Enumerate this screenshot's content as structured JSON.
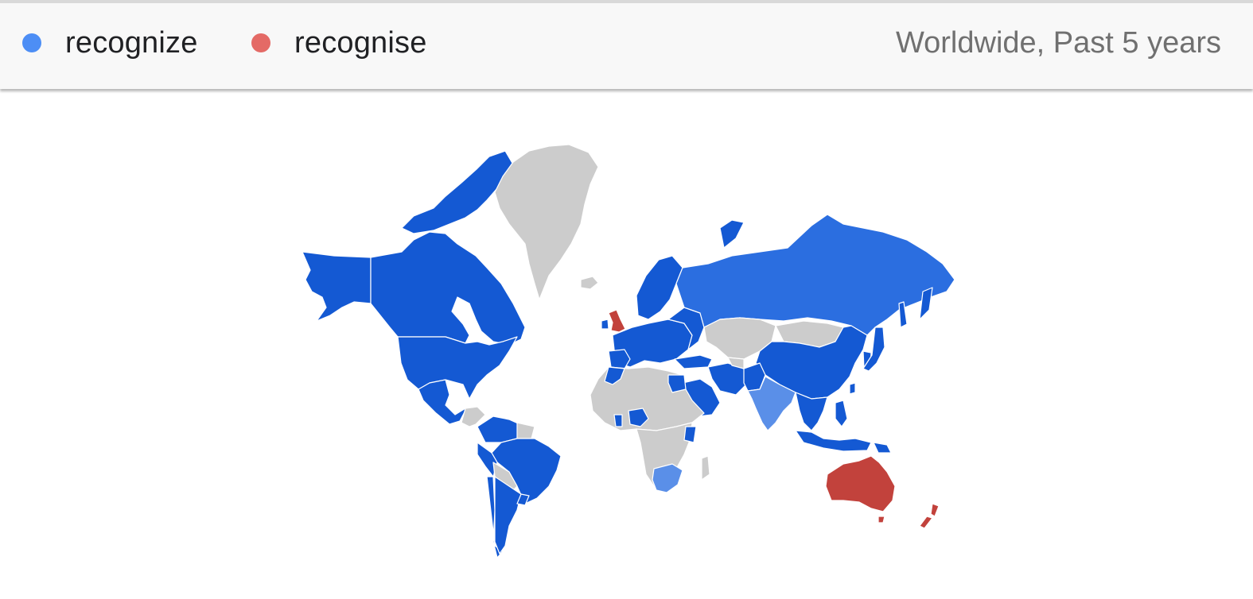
{
  "legend": {
    "items": [
      {
        "label": "recognize",
        "color": "#4d8ef5"
      },
      {
        "label": "recognise",
        "color": "#e46a66"
      }
    ]
  },
  "scope": {
    "label": "Worldwide, Past 5 years"
  },
  "map": {
    "colors": {
      "recognize_strong": "#1459d3",
      "recognize_medium": "#2b6ee0",
      "recognize_light": "#5a8fe8",
      "recognise_strong": "#c2423c",
      "no_data": "#cccccc"
    },
    "regions": [
      {
        "name": "Canada",
        "term": "recognize"
      },
      {
        "name": "United States",
        "term": "recognize"
      },
      {
        "name": "Alaska",
        "term": "recognize"
      },
      {
        "name": "Mexico",
        "term": "recognize"
      },
      {
        "name": "Brazil",
        "term": "recognize"
      },
      {
        "name": "Argentina",
        "term": "recognize"
      },
      {
        "name": "Russia",
        "term": "recognize"
      },
      {
        "name": "China",
        "term": "recognize"
      },
      {
        "name": "India",
        "term": "recognize"
      },
      {
        "name": "South Africa",
        "term": "recognize"
      },
      {
        "name": "Europe",
        "term": "recognize"
      },
      {
        "name": "Middle East",
        "term": "recognize"
      },
      {
        "name": "Southeast Asia",
        "term": "recognize"
      },
      {
        "name": "Japan",
        "term": "recognize"
      },
      {
        "name": "Nigeria",
        "term": "recognize"
      },
      {
        "name": "Egypt",
        "term": "recognize"
      },
      {
        "name": "United Kingdom",
        "term": "recognise"
      },
      {
        "name": "Australia",
        "term": "recognise"
      },
      {
        "name": "New Zealand",
        "term": "recognise"
      },
      {
        "name": "Greenland",
        "term": "none"
      },
      {
        "name": "Africa (other)",
        "term": "none"
      },
      {
        "name": "Central Asia",
        "term": "none"
      }
    ]
  }
}
